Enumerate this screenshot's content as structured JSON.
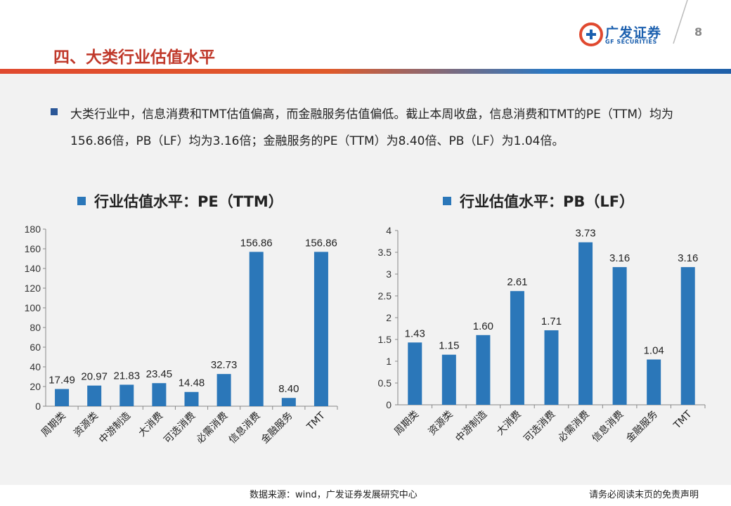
{
  "header": {
    "title": "四、大类行业估值水平",
    "page_number": "8",
    "logo_cn": "广发证券",
    "logo_en": "GF SECURITIES"
  },
  "bullet": {
    "text": "大类行业中，信息消费和TMT估值偏高，而金融服务估值偏低。截止本周收盘，信息消费和TMT的PE（TTM）均为156.86倍，PB（LF）均为3.16倍；金融服务的PE（TTM）为8.40倍、PB（LF）为1.04倍。"
  },
  "footer": {
    "source": "数据来源：wind，广发证券发展研究中心",
    "disclaimer": "请务必阅读末页的免责声明"
  },
  "colors": {
    "bar": "#2b77b9",
    "accent_red": "#c0392b",
    "brand_blue": "#1b5fae"
  },
  "chart_data": [
    {
      "type": "bar",
      "title": "行业估值水平：PE（TTM）",
      "categories": [
        "周期类",
        "资源类",
        "中游制造",
        "大消费",
        "可选消费",
        "必需消费",
        "信息消费",
        "金融服务",
        "TMT"
      ],
      "values": [
        17.49,
        20.97,
        21.83,
        23.45,
        14.48,
        32.73,
        156.86,
        8.4,
        156.86
      ],
      "value_labels": [
        "17.49",
        "20.97",
        "21.83",
        "23.45",
        "14.48",
        "32.73",
        "156.86",
        "8.40",
        "156.86"
      ],
      "ylim": [
        0,
        180
      ],
      "yticks": [
        "0",
        "20",
        "40",
        "60",
        "80",
        "100",
        "120",
        "140",
        "160",
        "180"
      ],
      "grid": false,
      "legend": "top-left"
    },
    {
      "type": "bar",
      "title": "行业估值水平：PB（LF）",
      "categories": [
        "周期类",
        "资源类",
        "中游制造",
        "大消费",
        "可选消费",
        "必需消费",
        "信息消费",
        "金融服务",
        "TMT"
      ],
      "values": [
        1.43,
        1.15,
        1.6,
        2.61,
        1.71,
        3.73,
        3.16,
        1.04,
        3.16
      ],
      "value_labels": [
        "1.43",
        "1.15",
        "1.60",
        "2.61",
        "1.71",
        "3.73",
        "3.16",
        "1.04",
        "3.16"
      ],
      "ylim": [
        0,
        4
      ],
      "yticks": [
        "0",
        "0.5",
        "1",
        "1.5",
        "2",
        "2.5",
        "3",
        "3.5",
        "4"
      ],
      "grid": false,
      "legend": "top-left"
    }
  ]
}
